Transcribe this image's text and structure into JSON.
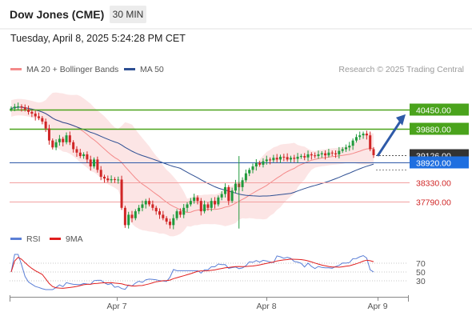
{
  "header": {
    "title": "Dow Jones (CME)",
    "timeframe": "30 MIN",
    "timestamp": "Tuesday, April 8, 2025 5:24:28 PM CET"
  },
  "legend": {
    "items": [
      {
        "label": "MA 20 + Bollinger Bands",
        "color": "#f48a8a"
      },
      {
        "label": "MA 50",
        "color": "#2e4f93"
      }
    ],
    "credit": "Research © 2025 Trading Central"
  },
  "rsi_legend": {
    "items": [
      {
        "label": "RSI",
        "color": "#5b7fd6"
      },
      {
        "label": "9MA",
        "color": "#e01e1e"
      }
    ]
  },
  "colors": {
    "bull": "#1f9a3c",
    "bear": "#d02626",
    "resistance": "#4aa31c",
    "support": "#f2a0a0",
    "pivot": "#2e5aa8",
    "current": "#333333",
    "arrow": "#2e5aa8"
  },
  "chart_data": {
    "type": "line",
    "y_range": [
      36900,
      41350
    ],
    "x_ticks": [
      "Apr 7",
      "Apr 8",
      "Apr 9"
    ],
    "levels": [
      {
        "value": 40450,
        "label": "40450.00",
        "kind": "resistance"
      },
      {
        "value": 39880,
        "label": "39880.00",
        "kind": "resistance"
      },
      {
        "value": 39126,
        "label": "39126.00",
        "kind": "current"
      },
      {
        "value": 38920,
        "label": "38920.00",
        "kind": "pivot"
      },
      {
        "value": 38330,
        "label": "38330.00",
        "kind": "support"
      },
      {
        "value": 37790,
        "label": "37790.00",
        "kind": "support"
      }
    ],
    "candles_close": [
      40480,
      40530,
      40540,
      40510,
      40450,
      40380,
      40330,
      40250,
      40200,
      40100,
      39900,
      39550,
      39350,
      39500,
      39600,
      39500,
      39700,
      39500,
      39300,
      39200,
      39100,
      39150,
      39000,
      38800,
      39000,
      38700,
      38500,
      38450,
      38400,
      38430,
      38420,
      38420,
      37600,
      37100,
      37400,
      37300,
      37500,
      37600,
      37700,
      37800,
      37700,
      37600,
      37500,
      37400,
      37300,
      37200,
      37100,
      37300,
      37500,
      37400,
      37600,
      37700,
      37800,
      37900,
      37800,
      37500,
      37700,
      37600,
      37800,
      37700,
      37900,
      38000,
      38200,
      37800,
      38100,
      38300,
      38200,
      38400,
      38600,
      38700,
      38800,
      38900,
      38850,
      38950,
      39000,
      38980,
      39050,
      39000,
      39080,
      39070,
      39000,
      39050,
      39020,
      39080,
      39100,
      39060,
      39150,
      39120,
      39100,
      39150,
      39180,
      39120,
      39200,
      39180,
      39150,
      39250,
      39300,
      39350,
      39400,
      39550,
      39650,
      39700,
      39750,
      39700,
      39300,
      39126
    ],
    "rsi_axis": [
      30,
      50,
      70
    ],
    "rsi_range": [
      10,
      90
    ]
  }
}
